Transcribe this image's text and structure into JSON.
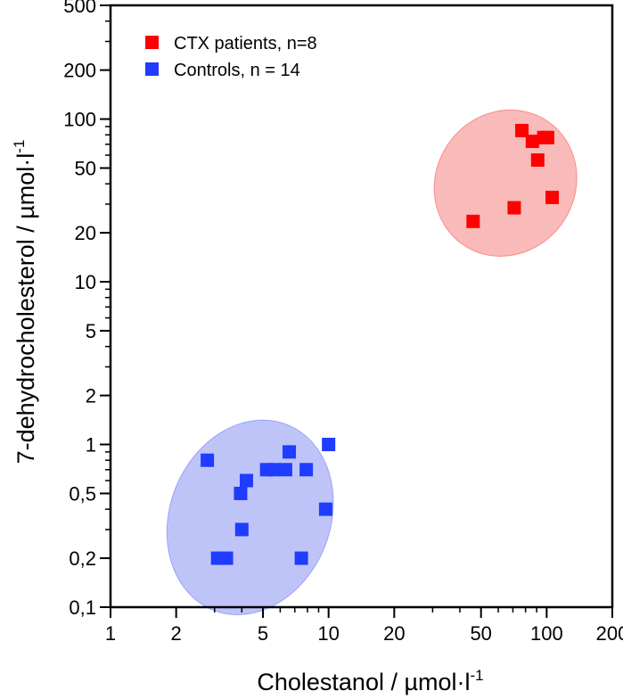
{
  "chart_data": {
    "type": "scatter",
    "x_scale": "log",
    "y_scale": "log",
    "xlim": [
      1,
      200
    ],
    "ylim": [
      0.1,
      500
    ],
    "xlabel": "Cholestanol / µmol·l",
    "xlabel_sup": "-1",
    "ylabel": "7-dehydrocholesterol / µmol·l",
    "ylabel_sup": "-1",
    "x_ticks": [
      {
        "value": 1,
        "label": "1"
      },
      {
        "value": 2,
        "label": "2"
      },
      {
        "value": 5,
        "label": "5"
      },
      {
        "value": 10,
        "label": "10"
      },
      {
        "value": 20,
        "label": "20"
      },
      {
        "value": 50,
        "label": "50"
      },
      {
        "value": 100,
        "label": "100"
      },
      {
        "value": 200,
        "label": "200"
      }
    ],
    "y_ticks": [
      {
        "value": 0.1,
        "label": "0,1"
      },
      {
        "value": 0.2,
        "label": "0,2"
      },
      {
        "value": 0.5,
        "label": "0,5"
      },
      {
        "value": 1,
        "label": "1"
      },
      {
        "value": 2,
        "label": "2"
      },
      {
        "value": 5,
        "label": "5"
      },
      {
        "value": 10,
        "label": "10"
      },
      {
        "value": 20,
        "label": "20"
      },
      {
        "value": 50,
        "label": "50"
      },
      {
        "value": 100,
        "label": "100"
      },
      {
        "value": 200,
        "label": "200"
      },
      {
        "value": 500,
        "label": "500"
      }
    ],
    "legend_position": "top-left",
    "series": [
      {
        "name": "CTX patients, n=8",
        "color": "#ff0000",
        "ellipse_color": "#f7a3a3",
        "points": [
          {
            "x": 46,
            "y": 23.5
          },
          {
            "x": 71,
            "y": 28.5
          },
          {
            "x": 77,
            "y": 85
          },
          {
            "x": 86,
            "y": 73
          },
          {
            "x": 91,
            "y": 56
          },
          {
            "x": 97,
            "y": 77
          },
          {
            "x": 101,
            "y": 77
          },
          {
            "x": 106,
            "y": 33
          }
        ]
      },
      {
        "name": "Controls, n = 14",
        "color": "#1f3cff",
        "ellipse_color": "#aab0f5",
        "points": [
          {
            "x": 2.78,
            "y": 0.8
          },
          {
            "x": 3.1,
            "y": 0.2
          },
          {
            "x": 3.4,
            "y": 0.2
          },
          {
            "x": 3.95,
            "y": 0.5
          },
          {
            "x": 4.0,
            "y": 0.3
          },
          {
            "x": 4.2,
            "y": 0.6
          },
          {
            "x": 5.6,
            "y": 0.7
          },
          {
            "x": 6.35,
            "y": 0.7
          },
          {
            "x": 6.6,
            "y": 0.9
          },
          {
            "x": 7.5,
            "y": 0.2
          },
          {
            "x": 7.9,
            "y": 0.7
          },
          {
            "x": 9.7,
            "y": 0.4
          },
          {
            "x": 10.0,
            "y": 1.0
          },
          {
            "x": 5.2,
            "y": 0.7
          }
        ]
      }
    ]
  }
}
